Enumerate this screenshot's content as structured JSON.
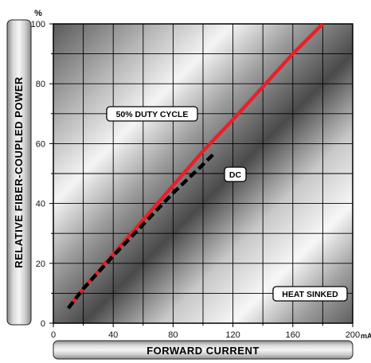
{
  "chart_data": {
    "type": "line",
    "title": "",
    "xlabel": "FORWARD CURRENT",
    "ylabel": "RELATIVE FIBER-COUPLED POWER",
    "x_unit": "mA",
    "y_unit": "%",
    "xlim": [
      0,
      200
    ],
    "ylim": [
      0,
      100
    ],
    "x_ticks": [
      0,
      40,
      80,
      120,
      160,
      200
    ],
    "y_ticks": [
      0,
      20,
      40,
      60,
      80,
      100
    ],
    "x_tick_labels": [
      "0",
      "40",
      "80",
      "120",
      "160",
      "200"
    ],
    "y_tick_labels": [
      "0",
      "20",
      "40",
      "60",
      "80",
      "100"
    ],
    "grid": true,
    "series": [
      {
        "name": "50% DUTY CYCLE",
        "color": "#e8202a",
        "style": "solid",
        "x": [
          10,
          20,
          40,
          60,
          80,
          100,
          120,
          140,
          160,
          180
        ],
        "y": [
          5,
          11.5,
          23,
          34.5,
          46,
          57.5,
          68,
          79,
          90,
          100
        ]
      },
      {
        "name": "DC",
        "color": "#000000",
        "style": "dashed",
        "x": [
          10,
          20,
          40,
          60,
          80,
          100,
          108
        ],
        "y": [
          5,
          11.5,
          22.5,
          33,
          43.5,
          53,
          57
        ]
      }
    ],
    "annotations": [
      "50% DUTY CYCLE",
      "DC",
      "HEAT SINKED"
    ]
  }
}
